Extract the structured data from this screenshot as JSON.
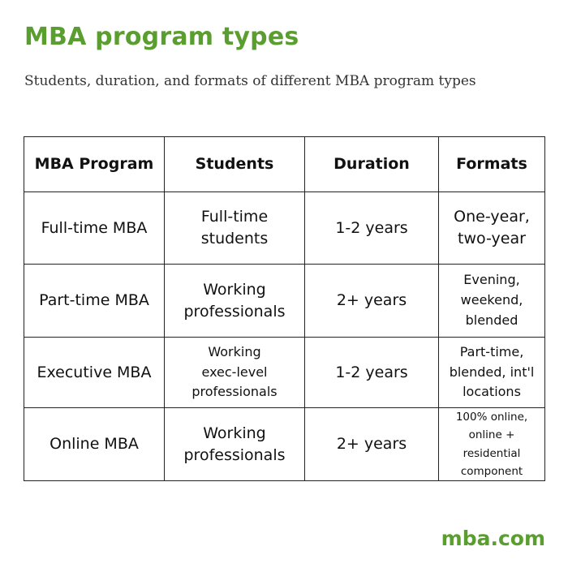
{
  "header": {
    "title": "MBA program types",
    "subtitle": "Students, duration, and formats of different MBA program types"
  },
  "table": {
    "columns": [
      "MBA Program",
      "Students",
      "Duration",
      "Formats"
    ],
    "rows": [
      {
        "program": "Full-time MBA",
        "students": "Full-time\nstudents",
        "duration": "1-2 years",
        "formats": "One-year,\ntwo-year"
      },
      {
        "program": "Part-time MBA",
        "students": "Working\nprofessionals",
        "duration": "2+ years",
        "formats": "Evening,\nweekend,\nblended"
      },
      {
        "program": "Executive MBA",
        "students": "Working\nexec-level\nprofessionals",
        "duration": "1-2 years",
        "formats": "Part-time,\nblended, int'l\nlocations"
      },
      {
        "program": "Online MBA",
        "students": "Working\nprofessionals",
        "duration": "2+ years",
        "formats": "100% online,\nonline + residential\ncomponent"
      }
    ]
  },
  "footer": {
    "brand": "mba.com"
  },
  "colors": {
    "accent": "#5a9e2f",
    "text": "#111111",
    "border": "#222222"
  }
}
